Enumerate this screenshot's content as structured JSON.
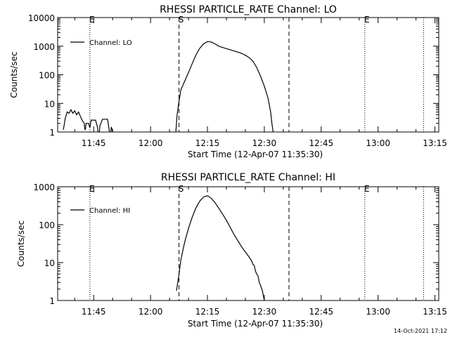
{
  "timestamp": "14-Oct-2021 17:12",
  "chart_data": [
    {
      "type": "line",
      "title": "RHESSI PARTICLE_RATE Channel: LO",
      "xlabel": "Start Time (12-Apr-07 11:35:30)",
      "ylabel": "Counts/sec",
      "y_scale": "log",
      "ylim": [
        1,
        10000
      ],
      "xlim": [
        "11:35:30",
        "13:16:00"
      ],
      "x_tick_labels": [
        "11:45",
        "12:00",
        "12:15",
        "12:30",
        "12:45",
        "13:00",
        "13:15"
      ],
      "y_tick_labels": [
        "1",
        "10",
        "100",
        "1000",
        "10000"
      ],
      "legend": {
        "position": "top-left",
        "entries": [
          "Channel: LO"
        ]
      },
      "markers": [
        {
          "time": "11:44:00",
          "style": "dotted",
          "label": "E"
        },
        {
          "time": "12:07:30",
          "style": "dashed",
          "label": "S"
        },
        {
          "time": "12:36:30",
          "style": "dashed",
          "label": ""
        },
        {
          "time": "12:56:30",
          "style": "dotted",
          "label": "E"
        },
        {
          "time": "13:12:00",
          "style": "dotted",
          "label": ""
        }
      ],
      "series": [
        {
          "name": "Channel: LO",
          "segments": [
            [
              [
                "11:37:00",
                1.2
              ],
              [
                "11:37:30",
                3
              ],
              [
                "11:38:00",
                5
              ],
              [
                "11:38:30",
                4.5
              ],
              [
                "11:39:00",
                6
              ],
              [
                "11:39:30",
                4.5
              ],
              [
                "11:40:00",
                5.5
              ],
              [
                "11:40:30",
                4
              ],
              [
                "11:41:00",
                5
              ],
              [
                "11:41:30",
                3.5
              ],
              [
                "11:42:00",
                2.5
              ],
              [
                "11:42:30",
                2
              ],
              [
                "11:42:40",
                1.2
              ]
            ],
            [
              [
                "11:42:50",
                1.2
              ],
              [
                "11:43:00",
                2
              ],
              [
                "11:43:40",
                2
              ],
              [
                "11:44:00",
                1.4
              ],
              [
                "11:44:20",
                2.6
              ],
              [
                "11:45:30",
                2.6
              ],
              [
                "11:46:00",
                1.5
              ],
              [
                "11:46:10",
                1.0
              ]
            ],
            [
              [
                "11:46:30",
                1.0
              ],
              [
                "11:46:40",
                1.7
              ],
              [
                "11:47:20",
                2.8
              ],
              [
                "11:48:40",
                2.8
              ],
              [
                "11:49:00",
                1.4
              ],
              [
                "11:49:10",
                1.0
              ]
            ],
            [
              [
                "11:49:30",
                1.0
              ],
              [
                "11:49:40",
                1.5
              ],
              [
                "11:50:00",
                1.0
              ]
            ],
            [
              [
                "12:06:40",
                1.0
              ],
              [
                "12:07:00",
                4
              ],
              [
                "12:07:30",
                12
              ],
              [
                "12:08:00",
                30
              ],
              [
                "12:09:00",
                60
              ],
              [
                "12:10:00",
                120
              ],
              [
                "12:11:00",
                250
              ],
              [
                "12:12:00",
                500
              ],
              [
                "12:13:00",
                850
              ],
              [
                "12:14:00",
                1200
              ],
              [
                "12:15:00",
                1450
              ],
              [
                "12:16:00",
                1400
              ],
              [
                "12:17:00",
                1200
              ],
              [
                "12:18:00",
                1000
              ],
              [
                "12:19:00",
                900
              ],
              [
                "12:20:00",
                820
              ],
              [
                "12:21:00",
                750
              ],
              [
                "12:22:00",
                680
              ],
              [
                "12:23:00",
                620
              ],
              [
                "12:24:00",
                560
              ],
              [
                "12:25:00",
                480
              ],
              [
                "12:26:00",
                400
              ],
              [
                "12:27:00",
                300
              ],
              [
                "12:28:00",
                180
              ],
              [
                "12:29:00",
                90
              ],
              [
                "12:30:00",
                40
              ],
              [
                "12:31:00",
                15
              ],
              [
                "12:31:40",
                5
              ],
              [
                "12:32:00",
                2
              ],
              [
                "12:32:20",
                1.0
              ]
            ]
          ]
        }
      ]
    },
    {
      "type": "line",
      "title": "RHESSI PARTICLE_RATE Channel: HI",
      "xlabel": "Start Time (12-Apr-07 11:35:30)",
      "ylabel": "Counts/sec",
      "y_scale": "log",
      "ylim": [
        1,
        1000
      ],
      "xlim": [
        "11:35:30",
        "13:16:00"
      ],
      "x_tick_labels": [
        "11:45",
        "12:00",
        "12:15",
        "12:30",
        "12:45",
        "13:00",
        "13:15"
      ],
      "y_tick_labels": [
        "1",
        "10",
        "100",
        "1000"
      ],
      "legend": {
        "position": "top-left",
        "entries": [
          "Channel: HI"
        ]
      },
      "markers": [
        {
          "time": "11:44:00",
          "style": "dotted",
          "label": "E"
        },
        {
          "time": "12:07:30",
          "style": "dashed",
          "label": "S"
        },
        {
          "time": "12:36:30",
          "style": "dashed",
          "label": ""
        },
        {
          "time": "12:56:30",
          "style": "dotted",
          "label": "E"
        },
        {
          "time": "13:12:00",
          "style": "dotted",
          "label": ""
        }
      ],
      "series": [
        {
          "name": "Channel: HI",
          "segments": [
            [
              [
                "12:06:50",
                1.8
              ],
              [
                "12:07:30",
                5
              ],
              [
                "12:08:00",
                12
              ],
              [
                "12:09:00",
                35
              ],
              [
                "12:10:00",
                80
              ],
              [
                "12:11:00",
                160
              ],
              [
                "12:12:00",
                280
              ],
              [
                "12:13:00",
                420
              ],
              [
                "12:14:00",
                540
              ],
              [
                "12:15:00",
                580
              ],
              [
                "12:16:00",
                500
              ],
              [
                "12:17:00",
                380
              ],
              [
                "12:18:00",
                270
              ],
              [
                "12:19:00",
                190
              ],
              [
                "12:20:00",
                130
              ],
              [
                "12:21:00",
                85
              ],
              [
                "12:22:00",
                55
              ],
              [
                "12:23:00",
                38
              ],
              [
                "12:24:00",
                26
              ],
              [
                "12:25:00",
                19
              ],
              [
                "12:26:00",
                14
              ],
              [
                "12:26:40",
                11
              ],
              [
                "12:27:00",
                9
              ],
              [
                "12:27:20",
                8.5
              ],
              [
                "12:27:40",
                6
              ],
              [
                "12:28:00",
                5
              ],
              [
                "12:28:20",
                4.5
              ],
              [
                "12:28:40",
                3
              ],
              [
                "12:29:00",
                2.5
              ],
              [
                "12:29:30",
                1.8
              ],
              [
                "12:30:00",
                1.0
              ]
            ]
          ]
        }
      ]
    }
  ]
}
